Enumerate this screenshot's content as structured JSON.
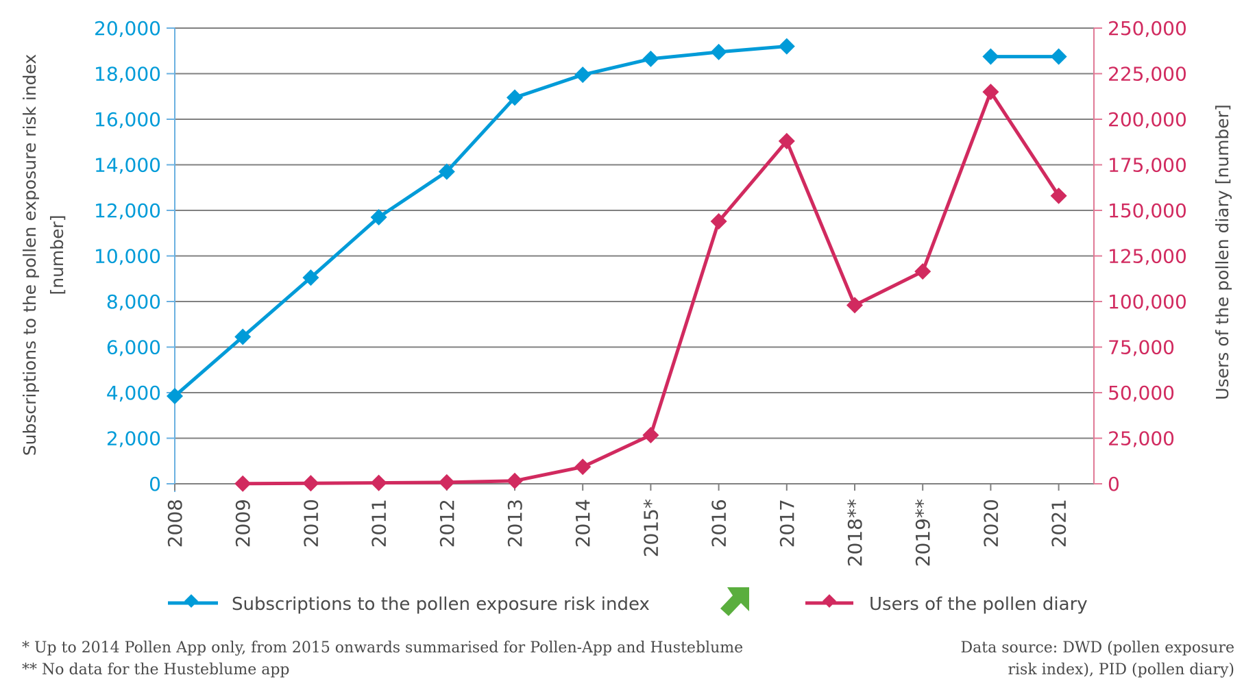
{
  "chart_data": {
    "type": "line",
    "title": "",
    "categories": [
      "2008",
      "2009",
      "2010",
      "2011",
      "2012",
      "2013",
      "2014",
      "2015*",
      "2016",
      "2017",
      "2018**",
      "2019**",
      "2020",
      "2021"
    ],
    "series": [
      {
        "name": "Subscriptions to the pollen exposure risk index",
        "axis": "left",
        "color": "#009bd8",
        "values": [
          3850,
          6450,
          9050,
          11700,
          13700,
          16950,
          17950,
          18650,
          18950,
          19200,
          null,
          null,
          18750,
          18750
        ]
      },
      {
        "name": "Users of the pollen diary",
        "axis": "right",
        "color": "#d12a5f",
        "values": [
          null,
          100,
          300,
          500,
          800,
          1600,
          9300,
          26700,
          144000,
          188000,
          98000,
          116500,
          215000,
          158000
        ]
      }
    ],
    "y_left": {
      "label_line1": "Subscriptions to the pollen exposure risk index",
      "label_line2": "[number]",
      "range": [
        0,
        20000
      ],
      "ticks": [
        "0",
        "2,000",
        "4,000",
        "6,000",
        "8,000",
        "10,000",
        "12,000",
        "14,000",
        "16,000",
        "18,000",
        "20,000"
      ],
      "color": "#009bd8"
    },
    "y_right": {
      "label": "Users of the pollen diary [number]",
      "range": [
        0,
        250000
      ],
      "ticks": [
        "0",
        "25,000",
        "50,000",
        "75,000",
        "100,000",
        "125,000",
        "150,000",
        "175,000",
        "200,000",
        "225,000",
        "250,000"
      ],
      "color": "#d12a5f"
    },
    "xlabel": "",
    "grid": true,
    "legend_position": "bottom"
  },
  "legend": {
    "items": [
      {
        "label": "Subscriptions to the pollen exposure risk index",
        "color": "#009bd8"
      },
      {
        "label": "Users of the pollen diary",
        "color": "#d12a5f"
      }
    ],
    "arrow_icon": "arrow-up-right-icon",
    "arrow_color": "#5aae3e"
  },
  "footnotes": {
    "line1": "* Up to 2014 Pollen App only, from 2015 onwards summarised for Pollen-App and Husteblume",
    "line2": "** No data for the Husteblume app"
  },
  "source": {
    "line1": "Data source: DWD (pollen exposure",
    "line2": "risk index), PID (pollen diary)"
  }
}
